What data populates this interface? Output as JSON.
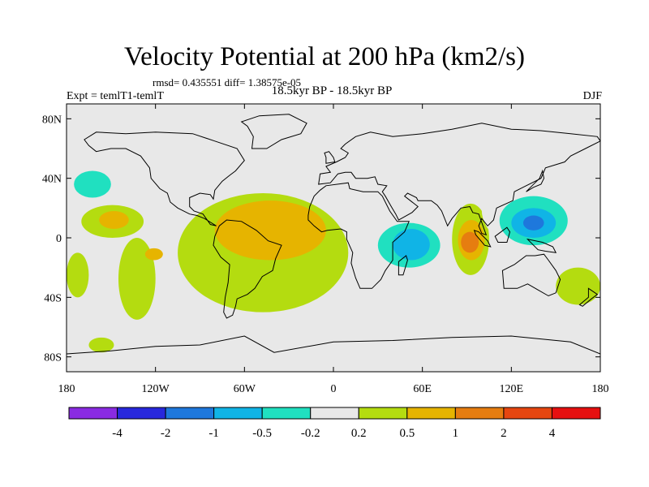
{
  "chart_data": {
    "type": "contour-map",
    "title": "Velocity Potential at 200 hPa (km2/s)",
    "stats": "rmsd= 0.435551 diff= 1.38575e-05",
    "left_label": "Expt = temlT1-temlT",
    "center_label": "18.5kyr BP - 18.5kyr BP",
    "right_label": "DJF",
    "projection": "cylindrical-equidistant",
    "lon_range": [
      -180,
      180
    ],
    "lat_range": [
      -90,
      90
    ],
    "x_ticks": [
      {
        "value": -180,
        "label": "180"
      },
      {
        "value": -120,
        "label": "120W"
      },
      {
        "value": -60,
        "label": "60W"
      },
      {
        "value": 0,
        "label": "0"
      },
      {
        "value": 60,
        "label": "60E"
      },
      {
        "value": 120,
        "label": "120E"
      },
      {
        "value": 180,
        "label": "180"
      }
    ],
    "y_ticks": [
      {
        "value": 80,
        "label": "80N"
      },
      {
        "value": 40,
        "label": "40N"
      },
      {
        "value": 0,
        "label": "0"
      },
      {
        "value": -40,
        "label": "40S"
      },
      {
        "value": -80,
        "label": "80S"
      }
    ],
    "colorbar": {
      "colors": [
        "#8a2be2",
        "#2828dc",
        "#1e78dc",
        "#10b4e6",
        "#20e0c0",
        "#e8e8e8",
        "#b4dc10",
        "#e6b400",
        "#e67d10",
        "#e64610",
        "#e61010"
      ],
      "labels": [
        "-4",
        "-2",
        "-1",
        "-0.5",
        "-0.2",
        "0.2",
        "0.5",
        "1",
        "2",
        "4"
      ]
    },
    "regions": [
      {
        "name": "north-pacific-negative",
        "level": -0.2,
        "lon": [
          -180,
          -100
        ],
        "lat": [
          8,
          53
        ]
      },
      {
        "name": "north-pacific-core",
        "level": -0.5,
        "lon": [
          -175,
          -150
        ],
        "lat": [
          27,
          45
        ]
      },
      {
        "name": "tropical-pacific-positive",
        "level": 0.2,
        "lon": [
          -170,
          -128
        ],
        "lat": [
          0,
          22
        ]
      },
      {
        "name": "tropical-pacific-core",
        "level": 0.5,
        "lon": [
          -158,
          -138
        ],
        "lat": [
          6,
          18
        ]
      },
      {
        "name": "east-pacific-negative",
        "level": -0.2,
        "lon": [
          -122,
          -100
        ],
        "lat": [
          10,
          22
        ]
      },
      {
        "name": "us-east-negative",
        "level": -0.2,
        "lon": [
          -85,
          -75
        ],
        "lat": [
          34,
          42
        ]
      },
      {
        "name": "atlantic-positive",
        "level": 0.2,
        "lon": [
          -105,
          10
        ],
        "lat": [
          -50,
          30
        ]
      },
      {
        "name": "atlantic-core",
        "level": 0.5,
        "lon": [
          -80,
          -5
        ],
        "lat": [
          -15,
          25
        ]
      },
      {
        "name": "south-pacific-positive",
        "level": 0.2,
        "lon": [
          -145,
          -120
        ],
        "lat": [
          -55,
          0
        ]
      },
      {
        "name": "south-pacific-core",
        "level": 0.5,
        "lon": [
          -127,
          -115
        ],
        "lat": [
          -15,
          -7
        ]
      },
      {
        "name": "indian-ocean-negative",
        "level": -0.2,
        "lon": [
          20,
          78
        ],
        "lat": [
          -25,
          15
        ]
      },
      {
        "name": "indian-ocean-mid",
        "level": -0.5,
        "lon": [
          30,
          72
        ],
        "lat": [
          -20,
          10
        ]
      },
      {
        "name": "indian-ocean-core",
        "level": -1,
        "lon": [
          40,
          65
        ],
        "lat": [
          -15,
          6
        ]
      },
      {
        "name": "sumatra-positive",
        "level": 0.2,
        "lon": [
          80,
          105
        ],
        "lat": [
          -25,
          23
        ]
      },
      {
        "name": "sumatra-mid",
        "level": 0.5,
        "lon": [
          84,
          102
        ],
        "lat": [
          -15,
          12
        ]
      },
      {
        "name": "sumatra-core",
        "level": 1,
        "lon": [
          86,
          98
        ],
        "lat": [
          -10,
          4
        ]
      },
      {
        "name": "west-pacific-negative",
        "level": -0.2,
        "lon": [
          100,
          180
        ],
        "lat": [
          -10,
          48
        ]
      },
      {
        "name": "west-pacific-mid",
        "level": -0.5,
        "lon": [
          112,
          158
        ],
        "lat": [
          -5,
          28
        ]
      },
      {
        "name": "west-pacific-core",
        "level": -1,
        "lon": [
          120,
          150
        ],
        "lat": [
          0,
          20
        ]
      },
      {
        "name": "west-pacific-peak",
        "level": -2,
        "lon": [
          128,
          142
        ],
        "lat": [
          5,
          15
        ]
      },
      {
        "name": "australia-positive",
        "level": 0.2,
        "lon": [
          150,
          180
        ],
        "lat": [
          -45,
          -20
        ]
      },
      {
        "name": "southern-ocean-positive",
        "level": 0.2,
        "lon": [
          -165,
          -148
        ],
        "lat": [
          -77,
          -67
        ]
      },
      {
        "name": "west-south-pacific-positive",
        "level": 0.2,
        "lon": [
          -180,
          -165
        ],
        "lat": [
          -40,
          -10
        ]
      }
    ]
  }
}
